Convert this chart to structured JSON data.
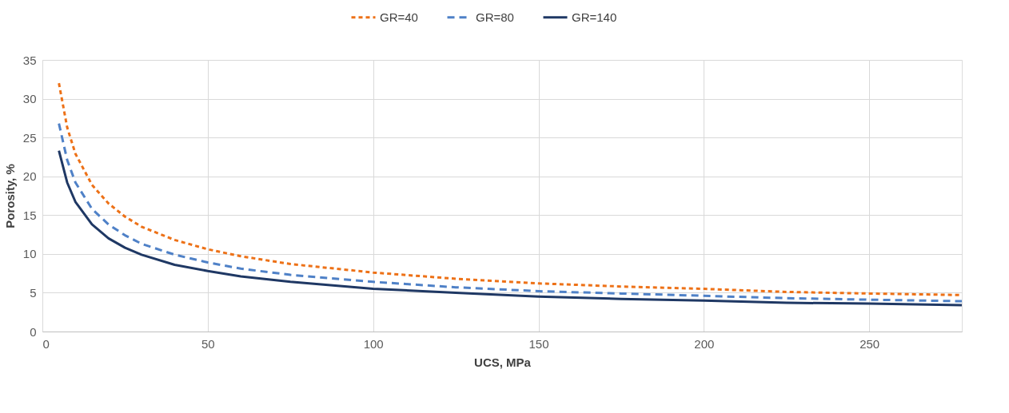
{
  "chart_data": {
    "type": "line",
    "xlabel": "UCS, MPa",
    "ylabel": "Porosity, %",
    "x": [
      5,
      7.5,
      10,
      15,
      20,
      25,
      30,
      40,
      50,
      60,
      75,
      100,
      125,
      150,
      175,
      200,
      225,
      250,
      278
    ],
    "series": [
      {
        "name": "GR=40",
        "color": "#ed7117",
        "line_style": "dotted",
        "values": [
          32,
          26.3,
          22.9,
          18.9,
          16.5,
          14.8,
          13.5,
          11.8,
          10.6,
          9.7,
          8.7,
          7.6,
          6.8,
          6.2,
          5.8,
          5.5,
          5.1,
          4.9,
          4.7
        ]
      },
      {
        "name": "GR=80",
        "color": "#4f81c7",
        "line_style": "dashed",
        "values": [
          26.8,
          22.1,
          19.2,
          15.8,
          13.8,
          12.4,
          11.3,
          9.9,
          8.9,
          8.1,
          7.3,
          6.4,
          5.7,
          5.2,
          4.9,
          4.6,
          4.3,
          4.1,
          3.9
        ]
      },
      {
        "name": "GR=140",
        "color": "#1f3864",
        "line_style": "solid",
        "values": [
          23.3,
          19.2,
          16.7,
          13.8,
          12.0,
          10.8,
          9.9,
          8.6,
          7.8,
          7.1,
          6.4,
          5.5,
          5.0,
          4.5,
          4.2,
          4.0,
          3.7,
          3.6,
          3.4
        ]
      }
    ],
    "xlim": [
      0,
      278
    ],
    "xticks": [
      0,
      50,
      100,
      150,
      200,
      250
    ],
    "ylim": [
      0,
      35
    ],
    "yticks": [
      0,
      5,
      10,
      15,
      20,
      25,
      30,
      35
    ],
    "grid": true,
    "legend": "top",
    "marker": "none"
  }
}
